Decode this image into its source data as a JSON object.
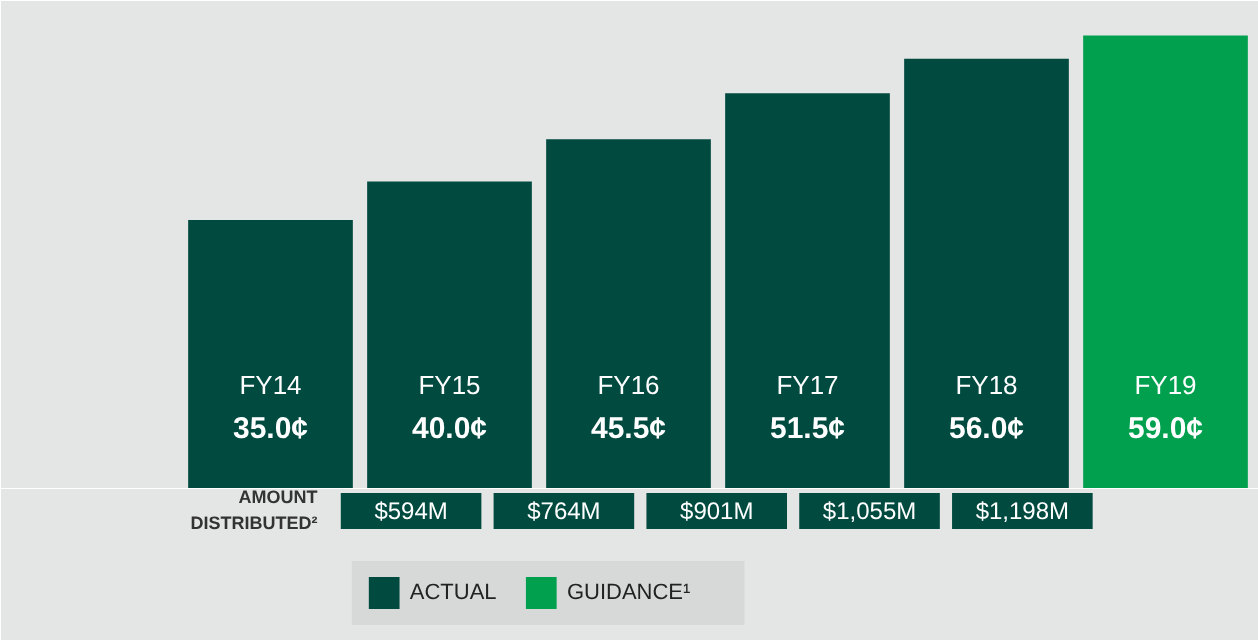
{
  "chart_data": {
    "type": "bar",
    "categories": [
      "FY14",
      "FY15",
      "FY16",
      "FY17",
      "FY18",
      "FY19"
    ],
    "ylim": [
      0,
      63.5
    ],
    "legend": "bottom left",
    "series": [
      {
        "name": "ACTUAL",
        "color": "#004a3f",
        "values": [
          35.0,
          40.0,
          45.5,
          51.5,
          56.0,
          null
        ],
        "value_labels": [
          "35.0¢",
          "40.0¢",
          "45.5¢",
          "51.5¢",
          "56.0¢",
          null
        ]
      },
      {
        "name": "GUIDANCE¹",
        "color": "#00a04f",
        "values": [
          null,
          null,
          null,
          null,
          null,
          59.0
        ],
        "value_labels": [
          null,
          null,
          null,
          null,
          null,
          "59.0¢"
        ]
      }
    ],
    "annotations": [
      "AMOUNT DISTRIBUTED²",
      "$594M",
      "$764M",
      "$901M",
      "$1,055M",
      "$1,198M"
    ]
  }
}
